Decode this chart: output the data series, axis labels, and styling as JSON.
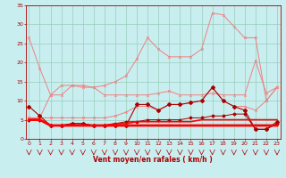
{
  "x": [
    0,
    1,
    2,
    3,
    4,
    5,
    6,
    7,
    8,
    9,
    10,
    11,
    12,
    13,
    14,
    15,
    16,
    17,
    18,
    19,
    20,
    21,
    22,
    23
  ],
  "line_pink1": [
    26.5,
    18.5,
    11.5,
    11.5,
    14.0,
    14.0,
    13.5,
    11.5,
    11.5,
    11.5,
    11.5,
    11.5,
    12.0,
    12.5,
    11.5,
    11.5,
    11.5,
    12.0,
    11.5,
    11.5,
    11.5,
    20.5,
    12.0,
    13.5
  ],
  "line_pink2": [
    5.5,
    5.5,
    11.5,
    14.0,
    14.0,
    13.5,
    13.5,
    14.0,
    15.0,
    16.5,
    21.0,
    26.5,
    23.5,
    21.5,
    21.5,
    21.5,
    23.5,
    33.0,
    32.5,
    29.5,
    26.5,
    26.5,
    10.0,
    13.5
  ],
  "line_pink3": [
    5.5,
    5.5,
    5.5,
    5.5,
    5.5,
    5.5,
    5.5,
    5.5,
    6.0,
    7.0,
    8.5,
    8.5,
    7.5,
    9.0,
    9.0,
    9.5,
    10.0,
    13.5,
    10.0,
    8.5,
    8.5,
    7.5,
    10.0,
    13.5
  ],
  "line_dark1": [
    8.5,
    6.0,
    3.5,
    3.5,
    4.0,
    4.0,
    3.5,
    3.5,
    3.5,
    3.5,
    9.0,
    9.0,
    7.5,
    9.0,
    9.0,
    9.5,
    10.0,
    13.5,
    10.0,
    8.5,
    7.5,
    2.5,
    2.5,
    4.5
  ],
  "line_dark2": [
    5.0,
    5.0,
    3.5,
    3.5,
    4.0,
    4.0,
    3.5,
    3.5,
    4.0,
    4.5,
    4.5,
    5.0,
    5.0,
    5.0,
    5.0,
    5.5,
    5.5,
    6.0,
    6.0,
    6.5,
    6.5,
    2.5,
    2.5,
    4.0
  ],
  "line_bright1": [
    5.0,
    5.0,
    3.5,
    3.5,
    3.5,
    3.5,
    3.5,
    3.5,
    4.0,
    4.0,
    4.5,
    4.5,
    4.5,
    4.5,
    4.5,
    4.5,
    5.0,
    5.0,
    5.0,
    5.0,
    5.0,
    5.0,
    5.0,
    5.0
  ],
  "line_bright2": [
    5.0,
    5.0,
    3.5,
    3.5,
    3.5,
    3.5,
    3.5,
    3.5,
    3.5,
    3.5,
    3.5,
    3.5,
    3.5,
    3.5,
    3.5,
    3.5,
    3.5,
    3.5,
    3.5,
    3.5,
    3.5,
    3.5,
    3.5,
    3.5
  ],
  "bg_color": "#c8eef0",
  "grid_color": "#99ccbb",
  "pink": "#f08080",
  "dark_red": "#aa0000",
  "bright_red": "#ff0000",
  "xlabel": "Vent moyen/en rafales ( km/h )",
  "ylim": [
    0,
    35
  ],
  "xlim": [
    0,
    23
  ],
  "yticks": [
    0,
    5,
    10,
    15,
    20,
    25,
    30,
    35
  ],
  "xticks": [
    0,
    1,
    2,
    3,
    4,
    5,
    6,
    7,
    8,
    9,
    10,
    11,
    12,
    13,
    14,
    15,
    16,
    17,
    18,
    19,
    20,
    21,
    22,
    23
  ]
}
